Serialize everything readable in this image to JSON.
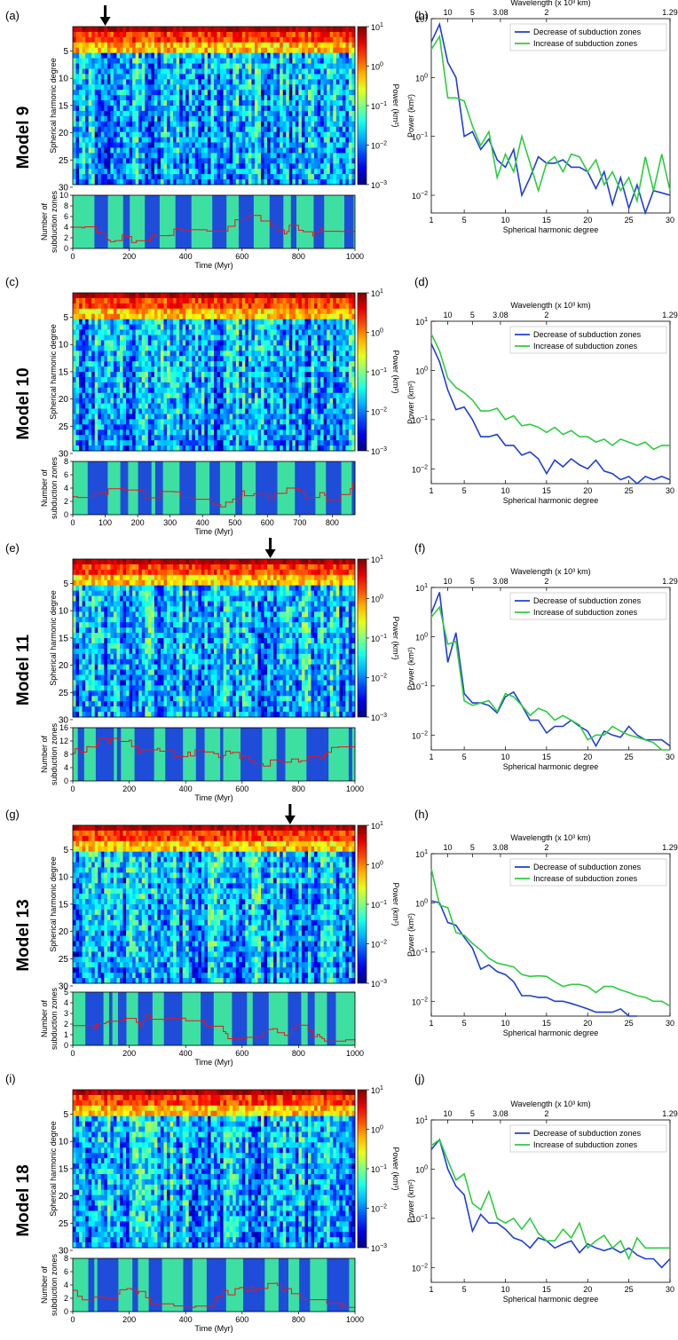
{
  "heatmap_ylabel": "Spherical harmonic degree",
  "strip_ylabel_1": "Number of",
  "strip_ylabel_2": "subduction zones",
  "time_xlabel": "Time (Myr)",
  "colorbar_label": "Power (km²)",
  "colorbar_ticks": [
    "10",
    "10",
    "10",
    "10",
    "10"
  ],
  "colorbar_exps": [
    "1",
    "0",
    "−1",
    "−2",
    "−3"
  ],
  "spectrum_xlabel": "Spherical harmonic degree",
  "spectrum_ylabel": "Power (km²)",
  "wavelength_label": "Wavelength (x 10³ km)",
  "wavelength_ticks": [
    "10",
    "5",
    "3.08",
    "2",
    "1.29"
  ],
  "legend_decrease": "Decrease of subduction zones",
  "legend_increase": "Increase of subduction zones",
  "colors": {
    "decrease": "#1f3fd6",
    "increase": "#2ecc40",
    "count_line": "#e8141e",
    "strip_low": "#1f4dd9",
    "strip_high": "#3de0a0"
  },
  "chart_data": [
    {
      "type": "heatmap",
      "panel": "(a)",
      "model": "Model 9",
      "x": "time",
      "xlim": [
        0,
        1000
      ],
      "x_ticks": [
        0,
        200,
        400,
        600,
        800,
        1000
      ],
      "ylim": [
        1,
        30
      ],
      "y_ticks": [
        5,
        10,
        15,
        20,
        25,
        30
      ],
      "arrow_at_time": 115,
      "colorbar": {
        "scale": "log",
        "range": [
          0.001,
          10
        ]
      },
      "count_strip": {
        "ylim": [
          0,
          10
        ],
        "y_ticks": [
          0,
          2,
          4,
          6,
          8,
          10
        ]
      }
    },
    {
      "type": "line",
      "panel": "(b)",
      "scale_y": "log",
      "xlim": [
        1,
        30
      ],
      "ylim": [
        0.005,
        10
      ],
      "x_ticks": [
        1,
        5,
        10,
        15,
        20,
        25,
        30
      ],
      "series": [
        {
          "name": "Decrease of subduction zones",
          "x": [
            1,
            2,
            3,
            4,
            5,
            6,
            7,
            8,
            9,
            10,
            11,
            12,
            13,
            14,
            15,
            16,
            17,
            18,
            19,
            20,
            21,
            22,
            23,
            24,
            25,
            26,
            27,
            28,
            29,
            30
          ],
          "values": [
            4,
            8,
            1.8,
            1,
            0.1,
            0.12,
            0.06,
            0.09,
            0.04,
            0.03,
            0.06,
            0.01,
            0.02,
            0.045,
            0.035,
            0.035,
            0.04,
            0.03,
            0.03,
            0.025,
            0.013,
            0.025,
            0.007,
            0.02,
            0.006,
            0.015,
            0.005,
            0.012,
            0.011,
            0.01
          ]
        },
        {
          "name": "Increase of subduction zones",
          "x": [
            1,
            2,
            3,
            4,
            5,
            6,
            7,
            8,
            9,
            10,
            11,
            12,
            13,
            14,
            15,
            16,
            17,
            18,
            19,
            20,
            21,
            22,
            23,
            24,
            25,
            26,
            27,
            28,
            29,
            30
          ],
          "values": [
            3,
            5,
            0.45,
            0.45,
            0.4,
            0.15,
            0.07,
            0.12,
            0.02,
            0.05,
            0.025,
            0.1,
            0.035,
            0.012,
            0.035,
            0.045,
            0.025,
            0.05,
            0.045,
            0.025,
            0.04,
            0.015,
            0.025,
            0.012,
            0.02,
            0.008,
            0.045,
            0.012,
            0.05,
            0.012
          ]
        }
      ]
    },
    {
      "type": "heatmap",
      "panel": "(c)",
      "model": "Model 10",
      "x": "time",
      "xlim": [
        0,
        870
      ],
      "x_ticks": [
        0,
        100,
        200,
        300,
        400,
        500,
        600,
        700,
        800
      ],
      "ylim": [
        1,
        30
      ],
      "y_ticks": [
        5,
        10,
        15,
        20,
        25,
        30
      ],
      "colorbar": {
        "scale": "log",
        "range": [
          0.001,
          10
        ]
      },
      "count_strip": {
        "ylim": [
          0,
          8
        ],
        "y_ticks": [
          0,
          2,
          4,
          6,
          8
        ]
      }
    },
    {
      "type": "line",
      "panel": "(d)",
      "scale_y": "log",
      "xlim": [
        1,
        30
      ],
      "ylim": [
        0.005,
        10
      ],
      "x_ticks": [
        1,
        5,
        10,
        15,
        20,
        25,
        30
      ],
      "series": [
        {
          "name": "Decrease of subduction zones",
          "x": [
            1,
            2,
            3,
            4,
            5,
            6,
            7,
            8,
            9,
            10,
            11,
            12,
            13,
            14,
            15,
            16,
            17,
            18,
            19,
            20,
            21,
            22,
            23,
            24,
            25,
            26,
            27,
            28,
            29,
            30
          ],
          "values": [
            3.5,
            1.5,
            0.4,
            0.16,
            0.18,
            0.1,
            0.045,
            0.045,
            0.05,
            0.03,
            0.03,
            0.019,
            0.022,
            0.016,
            0.008,
            0.015,
            0.011,
            0.016,
            0.012,
            0.01,
            0.015,
            0.009,
            0.008,
            0.006,
            0.007,
            0.005,
            0.007,
            0.006,
            0.007,
            0.006
          ]
        },
        {
          "name": "Increase of subduction zones",
          "x": [
            1,
            2,
            3,
            4,
            5,
            6,
            7,
            8,
            9,
            10,
            11,
            12,
            13,
            14,
            15,
            16,
            17,
            18,
            19,
            20,
            21,
            22,
            23,
            24,
            25,
            26,
            27,
            28,
            29,
            30
          ],
          "values": [
            5.5,
            2.5,
            0.7,
            0.45,
            0.35,
            0.25,
            0.15,
            0.15,
            0.17,
            0.1,
            0.12,
            0.075,
            0.08,
            0.07,
            0.055,
            0.07,
            0.05,
            0.06,
            0.045,
            0.045,
            0.035,
            0.04,
            0.03,
            0.04,
            0.035,
            0.03,
            0.035,
            0.025,
            0.03,
            0.03
          ]
        }
      ]
    },
    {
      "type": "heatmap",
      "panel": "(e)",
      "model": "Model 11",
      "x": "time",
      "xlim": [
        0,
        1000
      ],
      "x_ticks": [
        0,
        200,
        400,
        600,
        800,
        1000
      ],
      "ylim": [
        1,
        30
      ],
      "y_ticks": [
        5,
        10,
        15,
        20,
        25,
        30
      ],
      "arrow_at_time": 700,
      "colorbar": {
        "scale": "log",
        "range": [
          0.001,
          10
        ]
      },
      "count_strip": {
        "ylim": [
          0,
          16
        ],
        "y_ticks": [
          0,
          4,
          8,
          12,
          16
        ]
      }
    },
    {
      "type": "line",
      "panel": "(f)",
      "scale_y": "log",
      "xlim": [
        1,
        30
      ],
      "ylim": [
        0.005,
        10
      ],
      "x_ticks": [
        1,
        5,
        10,
        15,
        20,
        25,
        30
      ],
      "series": [
        {
          "name": "Decrease of subduction zones",
          "x": [
            1,
            2,
            3,
            4,
            5,
            6,
            7,
            8,
            9,
            10,
            11,
            12,
            13,
            14,
            15,
            16,
            17,
            18,
            19,
            20,
            21,
            22,
            23,
            24,
            25,
            26,
            27,
            28,
            29,
            30
          ],
          "values": [
            3,
            8,
            0.3,
            1.2,
            0.07,
            0.045,
            0.045,
            0.04,
            0.028,
            0.06,
            0.075,
            0.04,
            0.02,
            0.02,
            0.011,
            0.015,
            0.015,
            0.02,
            0.015,
            0.012,
            0.006,
            0.012,
            0.01,
            0.009,
            0.015,
            0.01,
            0.008,
            0.008,
            0.008,
            0.006
          ]
        },
        {
          "name": "Increase of subduction zones",
          "x": [
            1,
            2,
            3,
            4,
            5,
            6,
            7,
            8,
            9,
            10,
            11,
            12,
            13,
            14,
            15,
            16,
            17,
            18,
            19,
            20,
            21,
            22,
            23,
            24,
            25,
            26,
            27,
            28,
            29,
            30
          ],
          "values": [
            2.5,
            4,
            0.7,
            0.8,
            0.05,
            0.04,
            0.045,
            0.05,
            0.03,
            0.07,
            0.06,
            0.04,
            0.025,
            0.035,
            0.03,
            0.02,
            0.025,
            0.02,
            0.016,
            0.008,
            0.01,
            0.01,
            0.015,
            0.012,
            0.01,
            0.009,
            0.008,
            0.007,
            0.005,
            0.005
          ]
        }
      ]
    },
    {
      "type": "heatmap",
      "panel": "(g)",
      "model": "Model 13",
      "x": "time",
      "xlim": [
        0,
        1000
      ],
      "x_ticks": [
        0,
        200,
        400,
        600,
        800,
        1000
      ],
      "ylim": [
        1,
        30
      ],
      "y_ticks": [
        5,
        10,
        15,
        20,
        25,
        30
      ],
      "arrow_at_time": 770,
      "colorbar": {
        "scale": "log",
        "range": [
          0.001,
          10
        ]
      },
      "count_strip": {
        "ylim": [
          0,
          5
        ],
        "y_ticks": [
          0,
          1,
          2,
          3,
          4,
          5
        ]
      }
    },
    {
      "type": "line",
      "panel": "(h)",
      "scale_y": "log",
      "xlim": [
        1,
        30
      ],
      "ylim": [
        0.005,
        10
      ],
      "x_ticks": [
        1,
        5,
        10,
        15,
        20,
        25,
        30
      ],
      "series": [
        {
          "name": "Decrease of subduction zones",
          "x": [
            1,
            2,
            3,
            4,
            5,
            6,
            7,
            8,
            9,
            10,
            11,
            12,
            13,
            14,
            15,
            16,
            17,
            18,
            19,
            20,
            21,
            22,
            23,
            24,
            25,
            26
          ],
          "values": [
            1.1,
            1,
            0.4,
            0.35,
            0.2,
            0.12,
            0.045,
            0.055,
            0.04,
            0.035,
            0.025,
            0.013,
            0.013,
            0.012,
            0.012,
            0.01,
            0.01,
            0.009,
            0.008,
            0.007,
            0.006,
            0.006,
            0.006,
            0.007,
            0.005,
            0.005
          ]
        },
        {
          "name": "Increase of subduction zones",
          "x": [
            1,
            2,
            3,
            4,
            5,
            6,
            7,
            8,
            9,
            10,
            11,
            12,
            13,
            14,
            15,
            16,
            17,
            18,
            19,
            20,
            21,
            22,
            23,
            24,
            25,
            26,
            27,
            28,
            29,
            30
          ],
          "values": [
            5,
            0.9,
            0.8,
            0.25,
            0.22,
            0.15,
            0.11,
            0.075,
            0.06,
            0.055,
            0.05,
            0.035,
            0.032,
            0.033,
            0.032,
            0.025,
            0.02,
            0.022,
            0.022,
            0.02,
            0.015,
            0.02,
            0.02,
            0.017,
            0.015,
            0.013,
            0.012,
            0.01,
            0.01,
            0.008
          ]
        }
      ]
    },
    {
      "type": "heatmap",
      "panel": "(i)",
      "model": "Model 18",
      "x": "time",
      "xlim": [
        0,
        1000
      ],
      "x_ticks": [
        0,
        200,
        400,
        600,
        800,
        1000
      ],
      "ylim": [
        1,
        30
      ],
      "y_ticks": [
        5,
        10,
        15,
        20,
        25,
        30
      ],
      "colorbar": {
        "scale": "log",
        "range": [
          0.001,
          10
        ]
      },
      "count_strip": {
        "ylim": [
          0,
          8
        ],
        "y_ticks": [
          0,
          2,
          4,
          6,
          8
        ]
      }
    },
    {
      "type": "line",
      "panel": "(j)",
      "scale_y": "log",
      "xlim": [
        1,
        30
      ],
      "ylim": [
        0.005,
        10
      ],
      "x_ticks": [
        1,
        5,
        10,
        15,
        20,
        25,
        30
      ],
      "series": [
        {
          "name": "Decrease of subduction zones",
          "x": [
            1,
            2,
            3,
            4,
            5,
            6,
            7,
            8,
            9,
            10,
            11,
            12,
            13,
            14,
            15,
            16,
            17,
            18,
            19,
            20,
            21,
            22,
            23,
            24,
            25,
            26,
            27,
            28,
            29,
            30
          ],
          "values": [
            2.5,
            4,
            1,
            0.45,
            0.3,
            0.055,
            0.12,
            0.08,
            0.08,
            0.06,
            0.04,
            0.035,
            0.025,
            0.04,
            0.035,
            0.025,
            0.03,
            0.035,
            0.02,
            0.03,
            0.025,
            0.022,
            0.025,
            0.02,
            0.025,
            0.018,
            0.015,
            0.015,
            0.01,
            0.015
          ]
        },
        {
          "name": "Increase of subduction zones",
          "x": [
            1,
            2,
            3,
            4,
            5,
            6,
            7,
            8,
            9,
            10,
            11,
            12,
            13,
            14,
            15,
            16,
            17,
            18,
            19,
            20,
            21,
            22,
            23,
            24,
            25,
            26,
            27,
            28,
            29,
            30
          ],
          "values": [
            3,
            4,
            1.5,
            0.6,
            0.8,
            0.2,
            0.15,
            0.35,
            0.1,
            0.08,
            0.1,
            0.06,
            0.1,
            0.05,
            0.035,
            0.035,
            0.06,
            0.04,
            0.08,
            0.025,
            0.035,
            0.045,
            0.025,
            0.035,
            0.015,
            0.04,
            0.025,
            0.025,
            0.025,
            0.025
          ]
        }
      ]
    }
  ]
}
